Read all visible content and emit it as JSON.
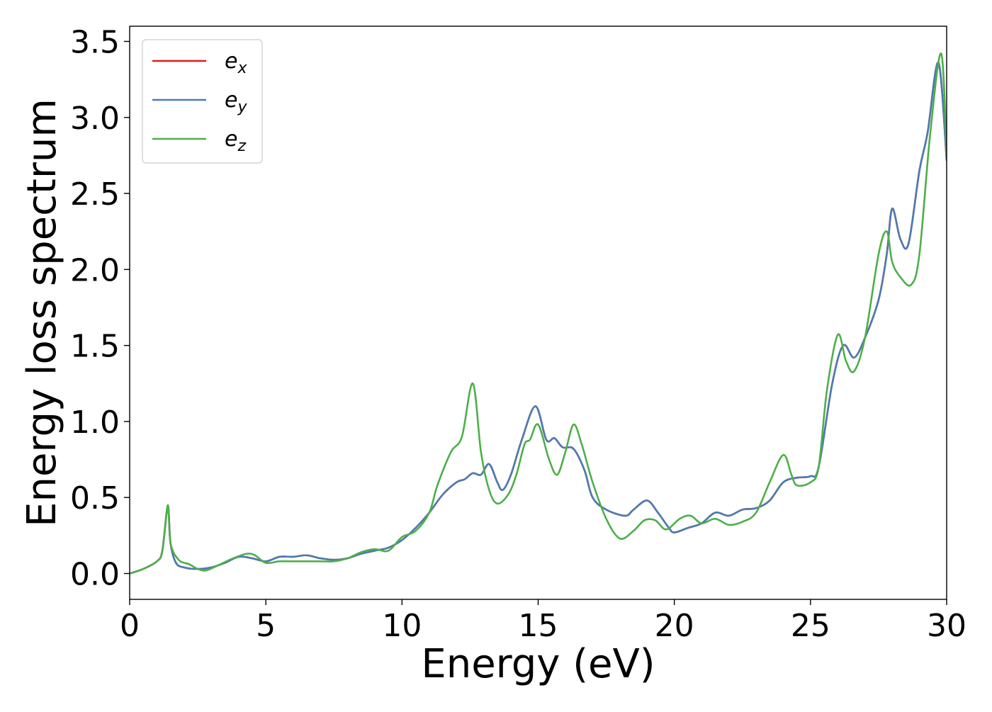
{
  "chart_data": {
    "type": "line",
    "xlabel": "Energy (eV)",
    "ylabel": "Energy loss spectrum",
    "xlim": [
      0,
      30
    ],
    "ylim": [
      -0.17,
      3.6
    ],
    "xticks": [
      0,
      5,
      10,
      15,
      20,
      25,
      30
    ],
    "yticks": [
      0.0,
      0.5,
      1.0,
      1.5,
      2.0,
      2.5,
      3.0,
      3.5
    ],
    "xtick_labels": [
      "0",
      "5",
      "10",
      "15",
      "20",
      "25",
      "30"
    ],
    "ytick_labels": [
      "0.0",
      "0.5",
      "1.0",
      "1.5",
      "2.0",
      "2.5",
      "3.0",
      "3.5"
    ],
    "grid": false,
    "legend_position": "top-left",
    "series": [
      {
        "name": "e_x",
        "legend_base": "e",
        "legend_sub": "x",
        "color": "#e41a1c",
        "points": [
          [
            0,
            0.0
          ],
          [
            0.5,
            0.03
          ],
          [
            1.0,
            0.08
          ],
          [
            1.2,
            0.15
          ],
          [
            1.4,
            0.44
          ],
          [
            1.5,
            0.2
          ],
          [
            1.7,
            0.07
          ],
          [
            2.0,
            0.04
          ],
          [
            2.5,
            0.03
          ],
          [
            3.0,
            0.04
          ],
          [
            3.5,
            0.07
          ],
          [
            4.0,
            0.11
          ],
          [
            4.5,
            0.1
          ],
          [
            5.0,
            0.08
          ],
          [
            5.5,
            0.11
          ],
          [
            6.0,
            0.11
          ],
          [
            6.5,
            0.12
          ],
          [
            7.0,
            0.1
          ],
          [
            7.5,
            0.09
          ],
          [
            8.0,
            0.1
          ],
          [
            8.5,
            0.13
          ],
          [
            9.0,
            0.15
          ],
          [
            9.5,
            0.17
          ],
          [
            10.0,
            0.22
          ],
          [
            10.5,
            0.3
          ],
          [
            11.0,
            0.4
          ],
          [
            11.5,
            0.52
          ],
          [
            12.0,
            0.6
          ],
          [
            12.3,
            0.62
          ],
          [
            12.6,
            0.66
          ],
          [
            12.9,
            0.65
          ],
          [
            13.2,
            0.72
          ],
          [
            13.5,
            0.6
          ],
          [
            13.7,
            0.55
          ],
          [
            14.0,
            0.65
          ],
          [
            14.4,
            0.88
          ],
          [
            14.9,
            1.1
          ],
          [
            15.3,
            0.88
          ],
          [
            15.6,
            0.89
          ],
          [
            15.9,
            0.83
          ],
          [
            16.3,
            0.82
          ],
          [
            16.7,
            0.68
          ],
          [
            17.0,
            0.5
          ],
          [
            17.5,
            0.42
          ],
          [
            18.2,
            0.38
          ],
          [
            18.5,
            0.42
          ],
          [
            19.0,
            0.48
          ],
          [
            19.4,
            0.4
          ],
          [
            19.8,
            0.3
          ],
          [
            20.0,
            0.27
          ],
          [
            20.5,
            0.3
          ],
          [
            21.0,
            0.33
          ],
          [
            21.5,
            0.4
          ],
          [
            22.0,
            0.38
          ],
          [
            22.5,
            0.42
          ],
          [
            23.0,
            0.43
          ],
          [
            23.5,
            0.48
          ],
          [
            24.0,
            0.6
          ],
          [
            24.5,
            0.63
          ],
          [
            25.0,
            0.64
          ],
          [
            25.3,
            0.7
          ],
          [
            25.8,
            1.25
          ],
          [
            26.2,
            1.5
          ],
          [
            26.6,
            1.42
          ],
          [
            27.0,
            1.55
          ],
          [
            27.5,
            1.8
          ],
          [
            27.8,
            2.1
          ],
          [
            28.0,
            2.4
          ],
          [
            28.3,
            2.2
          ],
          [
            28.6,
            2.17
          ],
          [
            29.0,
            2.65
          ],
          [
            29.3,
            2.9
          ],
          [
            29.7,
            3.36
          ],
          [
            30.0,
            2.72
          ]
        ]
      },
      {
        "name": "e_y",
        "legend_base": "e",
        "legend_sub": "y",
        "color": "#4a7cb4",
        "points": [
          [
            0,
            0.0
          ],
          [
            0.5,
            0.03
          ],
          [
            1.0,
            0.08
          ],
          [
            1.2,
            0.15
          ],
          [
            1.4,
            0.44
          ],
          [
            1.5,
            0.2
          ],
          [
            1.7,
            0.07
          ],
          [
            2.0,
            0.04
          ],
          [
            2.5,
            0.03
          ],
          [
            3.0,
            0.04
          ],
          [
            3.5,
            0.07
          ],
          [
            4.0,
            0.11
          ],
          [
            4.5,
            0.1
          ],
          [
            5.0,
            0.08
          ],
          [
            5.5,
            0.11
          ],
          [
            6.0,
            0.11
          ],
          [
            6.5,
            0.12
          ],
          [
            7.0,
            0.1
          ],
          [
            7.5,
            0.09
          ],
          [
            8.0,
            0.1
          ],
          [
            8.5,
            0.13
          ],
          [
            9.0,
            0.15
          ],
          [
            9.5,
            0.17
          ],
          [
            10.0,
            0.22
          ],
          [
            10.5,
            0.3
          ],
          [
            11.0,
            0.4
          ],
          [
            11.5,
            0.52
          ],
          [
            12.0,
            0.6
          ],
          [
            12.3,
            0.62
          ],
          [
            12.6,
            0.66
          ],
          [
            12.9,
            0.65
          ],
          [
            13.2,
            0.72
          ],
          [
            13.5,
            0.6
          ],
          [
            13.7,
            0.55
          ],
          [
            14.0,
            0.65
          ],
          [
            14.4,
            0.88
          ],
          [
            14.9,
            1.1
          ],
          [
            15.3,
            0.88
          ],
          [
            15.6,
            0.89
          ],
          [
            15.9,
            0.83
          ],
          [
            16.3,
            0.82
          ],
          [
            16.7,
            0.68
          ],
          [
            17.0,
            0.5
          ],
          [
            17.5,
            0.42
          ],
          [
            18.2,
            0.38
          ],
          [
            18.5,
            0.42
          ],
          [
            19.0,
            0.48
          ],
          [
            19.4,
            0.4
          ],
          [
            19.8,
            0.3
          ],
          [
            20.0,
            0.27
          ],
          [
            20.5,
            0.3
          ],
          [
            21.0,
            0.33
          ],
          [
            21.5,
            0.4
          ],
          [
            22.0,
            0.38
          ],
          [
            22.5,
            0.42
          ],
          [
            23.0,
            0.43
          ],
          [
            23.5,
            0.48
          ],
          [
            24.0,
            0.6
          ],
          [
            24.5,
            0.63
          ],
          [
            25.0,
            0.64
          ],
          [
            25.3,
            0.7
          ],
          [
            25.8,
            1.25
          ],
          [
            26.2,
            1.5
          ],
          [
            26.6,
            1.42
          ],
          [
            27.0,
            1.55
          ],
          [
            27.5,
            1.8
          ],
          [
            27.8,
            2.1
          ],
          [
            28.0,
            2.4
          ],
          [
            28.3,
            2.2
          ],
          [
            28.6,
            2.17
          ],
          [
            29.0,
            2.65
          ],
          [
            29.3,
            2.9
          ],
          [
            29.7,
            3.36
          ],
          [
            30.0,
            2.72
          ]
        ]
      },
      {
        "name": "e_z",
        "legend_base": "e",
        "legend_sub": "z",
        "color": "#4daf4a",
        "points": [
          [
            0,
            0.0
          ],
          [
            0.5,
            0.03
          ],
          [
            1.0,
            0.08
          ],
          [
            1.2,
            0.15
          ],
          [
            1.4,
            0.45
          ],
          [
            1.5,
            0.2
          ],
          [
            1.8,
            0.09
          ],
          [
            2.2,
            0.06
          ],
          [
            2.5,
            0.03
          ],
          [
            2.8,
            0.02
          ],
          [
            3.2,
            0.05
          ],
          [
            3.8,
            0.1
          ],
          [
            4.3,
            0.13
          ],
          [
            4.6,
            0.12
          ],
          [
            5.0,
            0.07
          ],
          [
            5.5,
            0.08
          ],
          [
            6.0,
            0.08
          ],
          [
            6.5,
            0.08
          ],
          [
            7.0,
            0.08
          ],
          [
            7.5,
            0.08
          ],
          [
            8.0,
            0.1
          ],
          [
            8.5,
            0.14
          ],
          [
            9.0,
            0.16
          ],
          [
            9.5,
            0.15
          ],
          [
            10.0,
            0.24
          ],
          [
            10.5,
            0.28
          ],
          [
            11.0,
            0.4
          ],
          [
            11.3,
            0.58
          ],
          [
            11.8,
            0.8
          ],
          [
            12.2,
            0.9
          ],
          [
            12.6,
            1.25
          ],
          [
            12.9,
            0.8
          ],
          [
            13.2,
            0.55
          ],
          [
            13.5,
            0.46
          ],
          [
            13.9,
            0.52
          ],
          [
            14.2,
            0.65
          ],
          [
            14.5,
            0.85
          ],
          [
            14.7,
            0.88
          ],
          [
            15.0,
            0.98
          ],
          [
            15.4,
            0.75
          ],
          [
            15.7,
            0.65
          ],
          [
            16.0,
            0.8
          ],
          [
            16.3,
            0.98
          ],
          [
            16.6,
            0.85
          ],
          [
            17.0,
            0.6
          ],
          [
            17.5,
            0.36
          ],
          [
            18.0,
            0.23
          ],
          [
            18.5,
            0.28
          ],
          [
            18.9,
            0.35
          ],
          [
            19.3,
            0.35
          ],
          [
            19.7,
            0.29
          ],
          [
            20.2,
            0.36
          ],
          [
            20.6,
            0.38
          ],
          [
            21.0,
            0.33
          ],
          [
            21.5,
            0.36
          ],
          [
            22.0,
            0.32
          ],
          [
            22.5,
            0.34
          ],
          [
            23.0,
            0.4
          ],
          [
            23.5,
            0.6
          ],
          [
            24.0,
            0.78
          ],
          [
            24.3,
            0.65
          ],
          [
            24.5,
            0.58
          ],
          [
            25.0,
            0.6
          ],
          [
            25.3,
            0.7
          ],
          [
            25.6,
            1.2
          ],
          [
            26.0,
            1.57
          ],
          [
            26.3,
            1.4
          ],
          [
            26.6,
            1.33
          ],
          [
            27.0,
            1.55
          ],
          [
            27.5,
            2.1
          ],
          [
            27.8,
            2.25
          ],
          [
            28.0,
            2.05
          ],
          [
            28.3,
            1.95
          ],
          [
            28.7,
            1.9
          ],
          [
            29.0,
            2.1
          ],
          [
            29.4,
            2.9
          ],
          [
            29.8,
            3.42
          ],
          [
            30.0,
            2.75
          ]
        ]
      }
    ]
  }
}
